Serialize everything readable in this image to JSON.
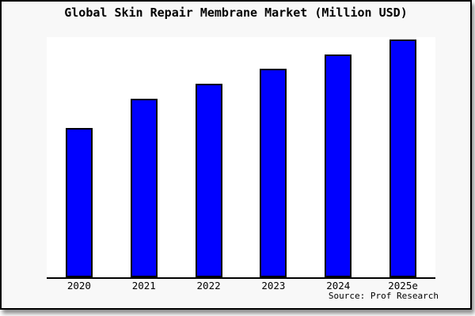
{
  "chart_data": {
    "type": "bar",
    "title": "Global Skin Repair Membrane Market (Million USD)",
    "categories": [
      "2020",
      "2021",
      "2022",
      "2023",
      "2024",
      "2025e"
    ],
    "values": [
      189,
      226,
      245,
      264,
      282,
      301
    ],
    "value_note": "No y-axis scale or data labels shown in chart; values are relative units proportional to bar heights",
    "xlabel": "",
    "ylabel": "",
    "ylim": [
      0,
      304
    ],
    "grid": false,
    "legend": null,
    "source_note": "Source: Prof Research",
    "bar_color": "#0000ff",
    "bar_border_color": "#000000"
  },
  "colors": {
    "card_background": "#f8f8f8",
    "plot_background": "#ffffff",
    "border": "#000000",
    "text": "#000000"
  }
}
